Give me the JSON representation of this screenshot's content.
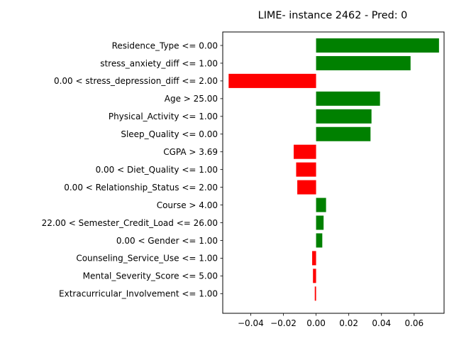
{
  "chart_data": {
    "type": "bar",
    "orientation": "horizontal",
    "title": "LIME- instance 2462 - Pred: 0",
    "xlabel": "",
    "ylabel": "",
    "xlim": [
      -0.0535,
      0.0755
    ],
    "xticks": [
      -0.04,
      -0.02,
      0.0,
      0.02,
      0.04,
      0.06
    ],
    "xtick_labels": [
      "−0.04",
      "−0.02",
      "0.00",
      "0.02",
      "0.04",
      "0.06"
    ],
    "grid": false,
    "positive_color": "#008000",
    "negative_color": "#ff0000",
    "categories": [
      "Residence_Type <= 0.00",
      "stress_anxiety_diff <= 1.00",
      "0.00 < stress_depression_diff <= 2.00",
      "Age > 25.00",
      "Physical_Activity <= 1.00",
      "Sleep_Quality <= 0.00",
      "CGPA > 3.69",
      "0.00 < Diet_Quality <= 1.00",
      "0.00 < Relationship_Status <= 2.00",
      "Course > 4.00",
      "22.00 < Semester_Credit_Load <= 26.00",
      "0.00 < Gender <= 1.00",
      "Counseling_Service_Use <= 1.00",
      "Mental_Severity_Score <= 5.00",
      "Extracurricular_Involvement <= 1.00"
    ],
    "values": [
      0.0752,
      0.0578,
      -0.0535,
      0.0391,
      0.0339,
      0.0333,
      -0.0137,
      -0.0122,
      -0.0115,
      0.0061,
      0.0046,
      0.0038,
      -0.0024,
      -0.0019,
      -0.0008
    ]
  }
}
